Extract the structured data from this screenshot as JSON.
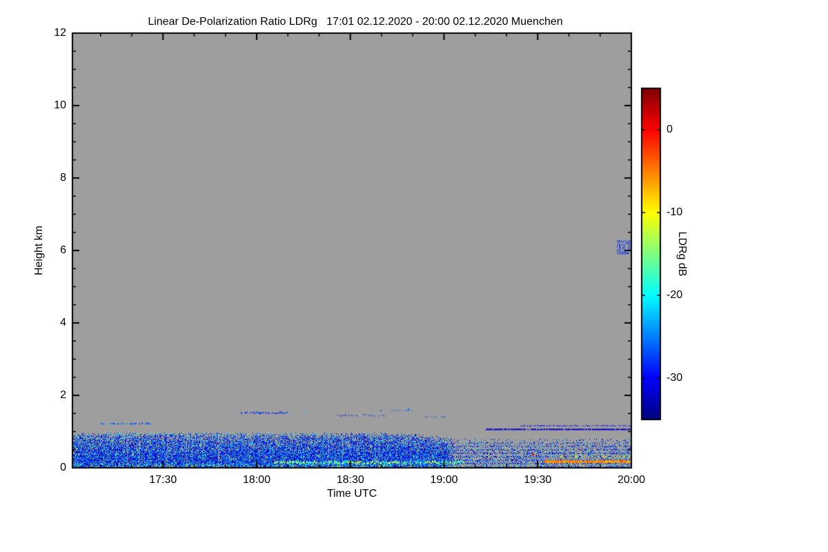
{
  "figure": {
    "title": "Linear De-Polarization Ratio LDRg   17:01 02.12.2020 - 20:00 02.12.2020 Muenchen"
  },
  "chart_data": {
    "type": "heatmap",
    "title": "Linear De-Polarization Ratio LDRg   17:01 02.12.2020 - 20:00 02.12.2020 Muenchen",
    "station": "Muenchen",
    "time_start": "17:01 02.12.2020",
    "time_end": "20:00 02.12.2020",
    "xlabel": "Time UTC",
    "ylabel": "Height km",
    "x_axis": {
      "start_minutes": 1021,
      "end_minutes": 1200,
      "ticks": [
        {
          "label": "17:30",
          "minutes": 1050
        },
        {
          "label": "18:00",
          "minutes": 1080
        },
        {
          "label": "18:30",
          "minutes": 1110
        },
        {
          "label": "19:00",
          "minutes": 1140
        },
        {
          "label": "19:30",
          "minutes": 1170
        },
        {
          "label": "20:00",
          "minutes": 1200
        }
      ],
      "minor_step_minutes": 10
    },
    "y_axis": {
      "min_km": 0,
      "max_km": 12,
      "ticks": [
        0,
        2,
        4,
        6,
        8,
        10,
        12
      ],
      "minor_step_km": 0.5
    },
    "no_signal_color": "#9e9e9e",
    "colorbar": {
      "label": "LDRg dB",
      "max_db": 5,
      "min_db": -35,
      "ticks_db": [
        0,
        -10,
        -20,
        -30
      ],
      "colormap": "jet"
    },
    "seed": 20201202,
    "noise_band": {
      "description": "speckled boundary-layer echo 0 to ~0.9 km, mostly -35 to -24 dB, sparser and striped after ~19:10",
      "top_km_base": 0.9,
      "top_jitter_km": 0.12,
      "drop_start_frac": 0.6,
      "drop_amount_km": 0.15,
      "sparse_after_frac": 0.68,
      "sparse_density": 0.55,
      "base_density": 0.93
    },
    "streaks": [
      {
        "x0": 0.36,
        "x1": 0.7,
        "km": 0.15,
        "db": [
          -22,
          -9
        ],
        "th": 3,
        "density": 0.75,
        "jitter": 0.06
      },
      {
        "x0": 0.845,
        "x1": 1.0,
        "km": 0.17,
        "db": [
          -8,
          -3
        ],
        "th": 4,
        "density": 0.95,
        "jitter": 0.02
      },
      {
        "x0": 0.87,
        "x1": 1.0,
        "km": 0.31,
        "db": [
          -13,
          -7
        ],
        "th": 2,
        "density": 0.45,
        "jitter": 0.04
      },
      {
        "x0": 0.74,
        "x1": 1.0,
        "km": 1.06,
        "db": [
          -34,
          -30
        ],
        "th": 2,
        "density": 0.9,
        "jitter": 0.01
      },
      {
        "x0": 0.8,
        "x1": 1.0,
        "km": 1.16,
        "db": [
          -34,
          -29
        ],
        "th": 1,
        "density": 0.7,
        "jitter": 0.02
      },
      {
        "x0": 0.05,
        "x1": 0.14,
        "km": 1.22,
        "db": [
          -30,
          -23
        ],
        "th": 2,
        "density": 0.55,
        "jitter": 0.03
      },
      {
        "x0": 0.3,
        "x1": 0.385,
        "km": 1.52,
        "db": [
          -32,
          -25
        ],
        "th": 2,
        "density": 0.5,
        "jitter": 0.04
      },
      {
        "x0": 0.47,
        "x1": 0.56,
        "km": 1.45,
        "db": [
          -33,
          -26
        ],
        "th": 1,
        "density": 0.45,
        "jitter": 0.05
      },
      {
        "x0": 0.63,
        "x1": 0.665,
        "km": 1.4,
        "db": [
          -30,
          -24
        ],
        "th": 1,
        "density": 0.5,
        "jitter": 0.04
      },
      {
        "x0": 0.06,
        "x1": 0.45,
        "km": 0.93,
        "db": [
          -24,
          -17
        ],
        "th": 1,
        "density": 0.3,
        "jitter": 0.05
      },
      {
        "x0": 0.55,
        "x1": 0.62,
        "km": 1.58,
        "db": [
          -28,
          -22
        ],
        "th": 1,
        "density": 0.35,
        "jitter": 0.03
      }
    ],
    "dots": [
      {
        "xf": 0.822,
        "km": 0.38,
        "db": 2,
        "size": 3
      },
      {
        "xf": 0.828,
        "km": 0.36,
        "db": -4,
        "size": 2
      },
      {
        "xf": 0.6,
        "km": 1.62,
        "db": -26,
        "size": 2
      },
      {
        "xf": 0.415,
        "km": 1.57,
        "db": -21,
        "size": 2
      }
    ],
    "high_altitude_feature": {
      "description": "small insect/plume echo near 6.1 km just before 20:00",
      "x0": 0.974,
      "x1": 0.998,
      "km0": 5.92,
      "km1": 6.3,
      "density": 0.3,
      "db": [
        -33,
        -25
      ]
    }
  }
}
